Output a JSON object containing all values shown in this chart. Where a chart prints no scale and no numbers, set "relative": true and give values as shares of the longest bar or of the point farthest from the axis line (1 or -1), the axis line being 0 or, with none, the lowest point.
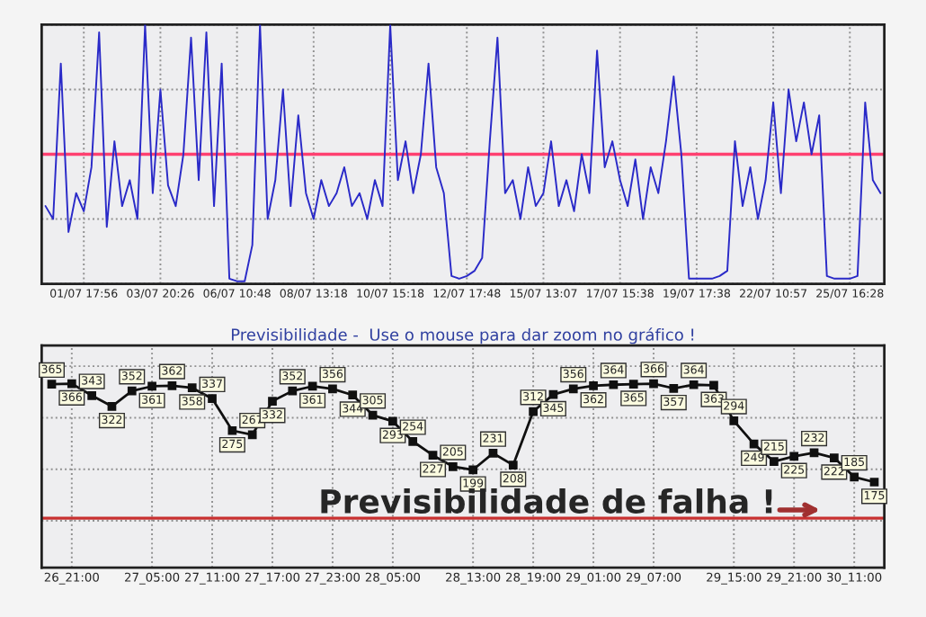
{
  "chart_data": [
    {
      "type": "line",
      "relative": true,
      "grid": true,
      "legend": false,
      "categories": [
        null,
        null,
        null,
        null,
        null,
        "01/07 17:56",
        null,
        null,
        null,
        null,
        null,
        null,
        null,
        null,
        null,
        "03/07 20:26",
        null,
        null,
        null,
        null,
        null,
        null,
        null,
        null,
        null,
        "06/07 10:48",
        null,
        null,
        null,
        null,
        null,
        null,
        null,
        null,
        null,
        "08/07 13:18",
        null,
        null,
        null,
        null,
        null,
        null,
        null,
        null,
        null,
        "10/07 15:18",
        null,
        null,
        null,
        null,
        null,
        null,
        null,
        null,
        null,
        "12/07 17:48",
        null,
        null,
        null,
        null,
        null,
        null,
        null,
        null,
        null,
        "15/07 13:07",
        null,
        null,
        null,
        null,
        null,
        null,
        null,
        null,
        null,
        "17/07 15:38",
        null,
        null,
        null,
        null,
        null,
        null,
        null,
        null,
        null,
        "19/07 17:38",
        null,
        null,
        null,
        null,
        null,
        null,
        null,
        null,
        null,
        "22/07 10:57",
        null,
        null,
        null,
        null,
        null,
        null,
        null,
        null,
        null,
        "25/07 16:28",
        null,
        null,
        null,
        null
      ],
      "series": [
        {
          "color": "#2a2ac8",
          "values": [
            0.3,
            0.25,
            0.85,
            0.2,
            0.35,
            0.28,
            0.45,
            0.97,
            0.22,
            0.55,
            0.3,
            0.4,
            0.25,
            1.0,
            0.35,
            0.75,
            0.38,
            0.3,
            0.5,
            0.95,
            0.4,
            0.97,
            0.3,
            0.85,
            0.02,
            0.01,
            0.01,
            0.15,
            1.0,
            0.25,
            0.4,
            0.75,
            0.3,
            0.65,
            0.35,
            0.25,
            0.4,
            0.3,
            0.35,
            0.45,
            0.3,
            0.35,
            0.25,
            0.4,
            0.3,
            1.0,
            0.4,
            0.55,
            0.35,
            0.5,
            0.85,
            0.45,
            0.35,
            0.03,
            0.02,
            0.03,
            0.05,
            0.1,
            0.55,
            0.95,
            0.35,
            0.4,
            0.25,
            0.45,
            0.3,
            0.35,
            0.55,
            0.3,
            0.4,
            0.28,
            0.5,
            0.35,
            0.9,
            0.45,
            0.55,
            0.4,
            0.3,
            0.48,
            0.25,
            0.45,
            0.35,
            0.55,
            0.8,
            0.5,
            0.02,
            0.02,
            0.02,
            0.02,
            0.03,
            0.05,
            0.55,
            0.3,
            0.45,
            0.25,
            0.4,
            0.7,
            0.35,
            0.75,
            0.55,
            0.7,
            0.5,
            0.65,
            0.03,
            0.02,
            0.02,
            0.02,
            0.03,
            0.7,
            0.4,
            0.35
          ]
        }
      ],
      "ref_lines": [
        {
          "axis": "y",
          "value": 0.5,
          "color": "#ff4070"
        }
      ]
    },
    {
      "type": "line",
      "title": "Previsibilidade -  Use o mouse para dar zoom no gráfico !",
      "grid": true,
      "legend": false,
      "marker": "square",
      "data_labels": true,
      "categories": [
        null,
        "26_21:00",
        null,
        null,
        null,
        "27_05:00",
        null,
        null,
        "27_11:00",
        null,
        null,
        "27_17:00",
        null,
        null,
        "27_23:00",
        null,
        null,
        "28_05:00",
        null,
        null,
        null,
        "28_13:00",
        null,
        null,
        "28_19:00",
        null,
        null,
        "29_01:00",
        null,
        null,
        "29_07:00",
        null,
        null,
        null,
        "29_15:00",
        null,
        null,
        "29_21:00",
        null,
        null,
        "30_11:00",
        null
      ],
      "series": [
        {
          "color": "#101010",
          "values": [
            365,
            366,
            343,
            322,
            352,
            361,
            362,
            358,
            337,
            275,
            267,
            332,
            352,
            361,
            356,
            344,
            305,
            293,
            254,
            227,
            205,
            199,
            231,
            208,
            312,
            345,
            356,
            362,
            364,
            365,
            366,
            357,
            364,
            363,
            294,
            249,
            215,
            225,
            232,
            222,
            185,
            175
          ]
        }
      ],
      "ref_lines": [
        {
          "axis": "y",
          "value": 105,
          "color": "#c83030"
        }
      ],
      "annotations": [
        "Previsibilidade de falha !"
      ]
    }
  ]
}
